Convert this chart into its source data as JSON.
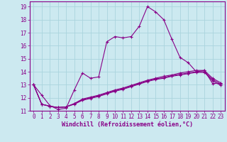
{
  "title": "",
  "xlabel": "Windchill (Refroidissement éolien,°C)",
  "ylabel": "",
  "background_color": "#cce9f0",
  "line_color": "#880088",
  "grid_color": "#aad4dd",
  "xlim": [
    -0.5,
    23.5
  ],
  "ylim": [
    11,
    19.4
  ],
  "xticks": [
    0,
    1,
    2,
    3,
    4,
    5,
    6,
    7,
    8,
    9,
    10,
    11,
    12,
    13,
    14,
    15,
    16,
    17,
    18,
    19,
    20,
    21,
    22,
    23
  ],
  "yticks": [
    11,
    12,
    13,
    14,
    15,
    16,
    17,
    18,
    19
  ],
  "series1": [
    13.0,
    12.2,
    11.4,
    11.1,
    11.2,
    12.6,
    13.9,
    13.5,
    13.6,
    16.3,
    16.7,
    16.6,
    16.7,
    17.5,
    19.0,
    18.6,
    18.0,
    16.5,
    15.1,
    14.7,
    14.0,
    14.1,
    13.1,
    13.1
  ],
  "series2": [
    13.0,
    11.5,
    11.35,
    11.25,
    11.3,
    11.55,
    11.9,
    12.05,
    12.2,
    12.4,
    12.6,
    12.75,
    12.95,
    13.15,
    13.35,
    13.5,
    13.65,
    13.75,
    13.9,
    14.0,
    14.1,
    14.1,
    13.5,
    13.15
  ],
  "series3": [
    13.0,
    11.5,
    11.35,
    11.25,
    11.3,
    11.55,
    11.85,
    12.0,
    12.15,
    12.35,
    12.55,
    12.7,
    12.9,
    13.1,
    13.3,
    13.45,
    13.55,
    13.7,
    13.8,
    13.9,
    14.0,
    14.0,
    13.4,
    13.05
  ],
  "series4": [
    13.0,
    11.5,
    11.35,
    11.25,
    11.3,
    11.5,
    11.8,
    11.95,
    12.1,
    12.3,
    12.5,
    12.65,
    12.85,
    13.05,
    13.25,
    13.4,
    13.5,
    13.65,
    13.75,
    13.85,
    13.95,
    13.95,
    13.3,
    12.95
  ],
  "markersize": 3,
  "linewidth": 0.8,
  "tick_fontsize": 5.5,
  "xlabel_fontsize": 6.0,
  "figsize": [
    3.2,
    2.0
  ],
  "dpi": 100
}
